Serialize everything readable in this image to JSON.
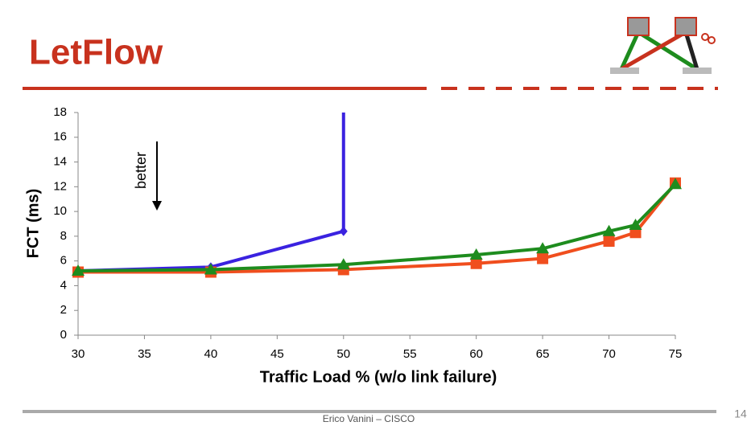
{
  "slide": {
    "title": "LetFlow",
    "footer": "Erico Vanini – CISCO",
    "page_number": "14"
  },
  "chart_data": {
    "type": "line",
    "x_label": "Traffic Load % (w/o link failure)",
    "y_label": "FCT (ms)",
    "annotation": "better",
    "xlim": [
      30,
      75
    ],
    "xticks": [
      30,
      35,
      40,
      45,
      50,
      55,
      60,
      65,
      70,
      75
    ],
    "ylim": [
      0,
      18
    ],
    "yticks": [
      0,
      2,
      4,
      6,
      8,
      10,
      12,
      14,
      16,
      18
    ],
    "series": [
      {
        "color": "#3a22e0",
        "marker": "diamond",
        "x": [
          30,
          40,
          50,
          50
        ],
        "values": [
          5.2,
          5.5,
          8.4,
          18
        ]
      },
      {
        "color": "#f04e1e",
        "marker": "square",
        "x": [
          30,
          40,
          50,
          60,
          65,
          70,
          72,
          75
        ],
        "values": [
          5.1,
          5.1,
          5.3,
          5.8,
          6.2,
          7.6,
          8.3,
          12.3
        ]
      },
      {
        "color": "#1e8c1e",
        "marker": "triangle",
        "x": [
          30,
          40,
          50,
          60,
          65,
          70,
          72,
          75
        ],
        "values": [
          5.2,
          5.3,
          5.7,
          6.5,
          7.0,
          8.4,
          8.9,
          12.2
        ]
      }
    ]
  }
}
